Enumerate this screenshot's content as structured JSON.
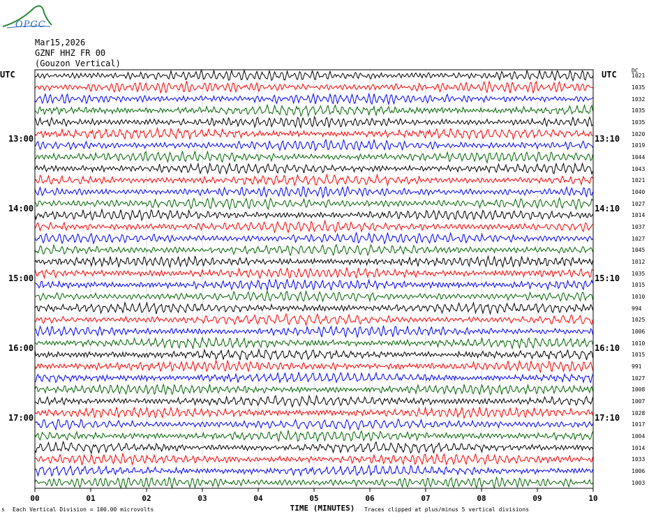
{
  "header": {
    "date": "Mar15,2026",
    "station": "GZNF HHZ FR 00",
    "location": "(Gouzon Vertical)",
    "logo_text": "OPGC"
  },
  "left_axis": {
    "label": "UTC",
    "hours": [
      "13:00",
      "14:00",
      "15:00",
      "16:00",
      "17:00"
    ]
  },
  "right_axis": {
    "label": "UTC",
    "dc_label": "DC",
    "hours": [
      "13:10",
      "14:10",
      "15:10",
      "16:10",
      "17:10"
    ]
  },
  "footer": {
    "scale_note": "Each Vertical Division = 100.00 microvolts",
    "clip_note": "Traces clipped at plus/minus 5 vertical divisions",
    "corner_mark": "s"
  },
  "chart_data": {
    "type": "line",
    "title": "",
    "xlabel": "TIME (MINUTES)",
    "xlim": [
      0,
      10
    ],
    "x_ticks": [
      "00",
      "01",
      "02",
      "03",
      "04",
      "05",
      "06",
      "07",
      "08",
      "09",
      "10"
    ],
    "rows_per_hour": 6,
    "trace_colors": [
      "#000000",
      "#ff0000",
      "#0000ff",
      "#006400"
    ],
    "dc_offsets": [
      1021,
      1035,
      1032,
      1035,
      1035,
      1020,
      1019,
      1044,
      1043,
      1021,
      1040,
      1027,
      1014,
      1037,
      1027,
      1045,
      1012,
      1035,
      1015,
      1010,
      994,
      1025,
      1006,
      1010,
      1015,
      991,
      1027,
      1008,
      1007,
      1028,
      1017,
      1004,
      1014,
      1033,
      1006,
      1003
    ]
  }
}
